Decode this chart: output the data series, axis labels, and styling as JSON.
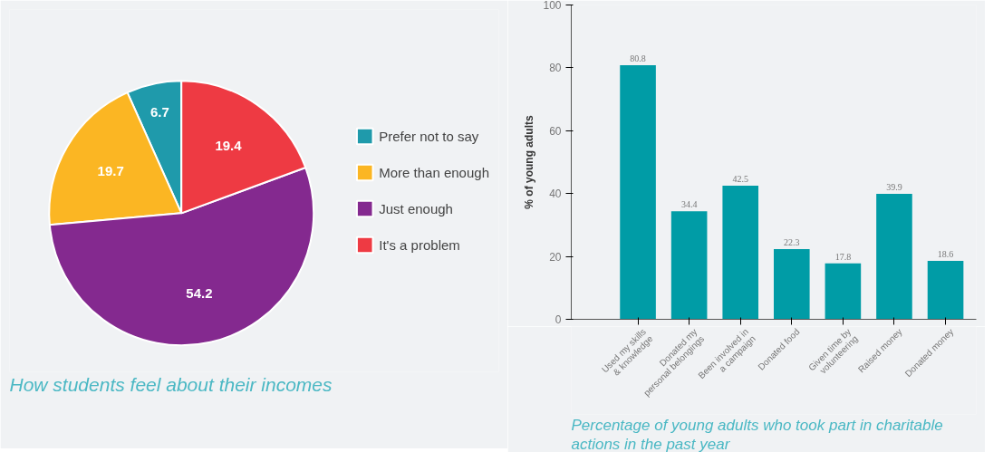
{
  "chart_data": [
    {
      "type": "pie",
      "title": "How students feel about their incomes",
      "categories": [
        "Prefer not to say",
        "More than enough",
        "Just enough",
        "It's a problem"
      ],
      "values": [
        6.7,
        19.7,
        54.2,
        19.4
      ],
      "colors": [
        "#1f9aab",
        "#fbb623",
        "#84298f",
        "#ee3a43"
      ],
      "data_labels": true,
      "legend": "right"
    },
    {
      "type": "bar",
      "title": "Percentage of young adults who took part in charitable\nactions in the past year",
      "ylabel": "% of young adults",
      "categories": [
        "Used my skills\n& knowledge",
        "Donated my\npersonal belongings",
        "Been involved in\na campaign",
        "Donated food",
        "Given time by\nvolunteering",
        "Raised money",
        "Donated money"
      ],
      "values": [
        80.8,
        34.4,
        42.5,
        22.3,
        17.8,
        39.9,
        18.6
      ],
      "color": "#009ca6",
      "ylim": [
        0,
        100
      ],
      "yticks": [
        0,
        20,
        40,
        60,
        80,
        100
      ],
      "data_labels": true,
      "grid": false
    }
  ]
}
